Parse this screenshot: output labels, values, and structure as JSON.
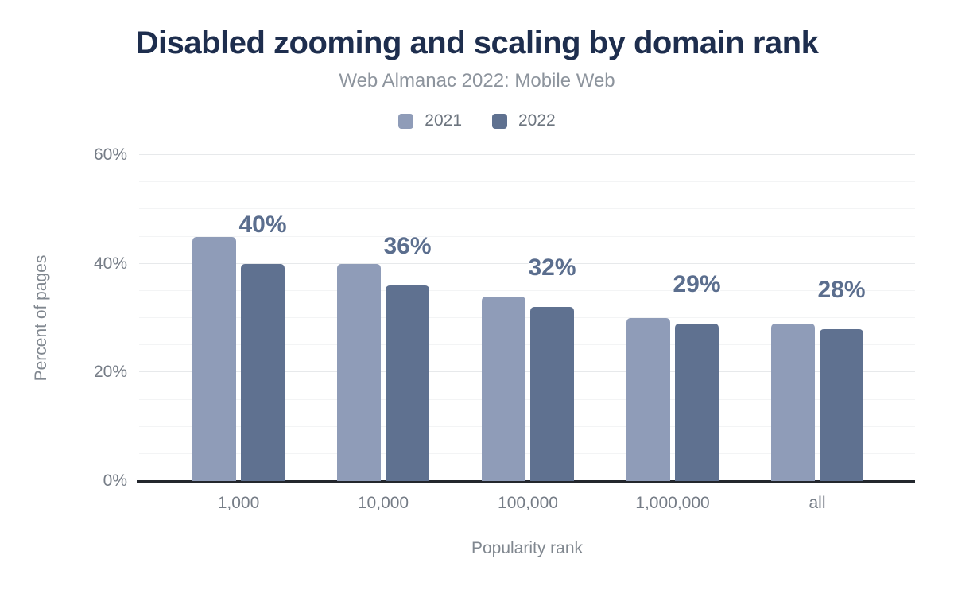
{
  "page": {
    "title": "Disabled zooming and scaling by domain rank",
    "subtitle": "Web Almanac 2022: Mobile Web"
  },
  "legend": [
    {
      "label": "2021",
      "color": "#8f9cb8"
    },
    {
      "label": "2022",
      "color": "#5f7190"
    }
  ],
  "axes": {
    "ylabel": "Percent of pages",
    "xlabel": "Popularity rank"
  },
  "chart_data": {
    "type": "bar",
    "title": "Disabled zooming and scaling by domain rank",
    "subtitle": "Web Almanac 2022: Mobile Web",
    "xlabel": "Popularity rank",
    "ylabel": "Percent of pages",
    "categories": [
      "1,000",
      "10,000",
      "100,000",
      "1,000,000",
      "all"
    ],
    "series": [
      {
        "name": "2021",
        "color": "#8f9cb8",
        "values": [
          45,
          40,
          34,
          30,
          29
        ]
      },
      {
        "name": "2022",
        "color": "#5f7190",
        "values": [
          40,
          36,
          32,
          29,
          28
        ]
      }
    ],
    "data_labels": {
      "series": "2022",
      "values": [
        "40%",
        "36%",
        "32%",
        "29%",
        "28%"
      ]
    },
    "ylim": [
      0,
      60
    ],
    "yticks": [
      {
        "value": 0,
        "label": "0%"
      },
      {
        "value": 20,
        "label": "20%"
      },
      {
        "value": 40,
        "label": "40%"
      },
      {
        "value": 60,
        "label": "60%"
      }
    ],
    "minor_grid_step": 5,
    "grid": "on",
    "legend_position": "top"
  },
  "colors": {
    "title": "#1e2e4e",
    "subtitle": "#8d949d",
    "data_label": "#5b6e8e",
    "axis_line": "#23272d",
    "grid_major": "#e7e9eb",
    "grid_minor": "#f3f4f5",
    "tick_text": "#757c86"
  }
}
